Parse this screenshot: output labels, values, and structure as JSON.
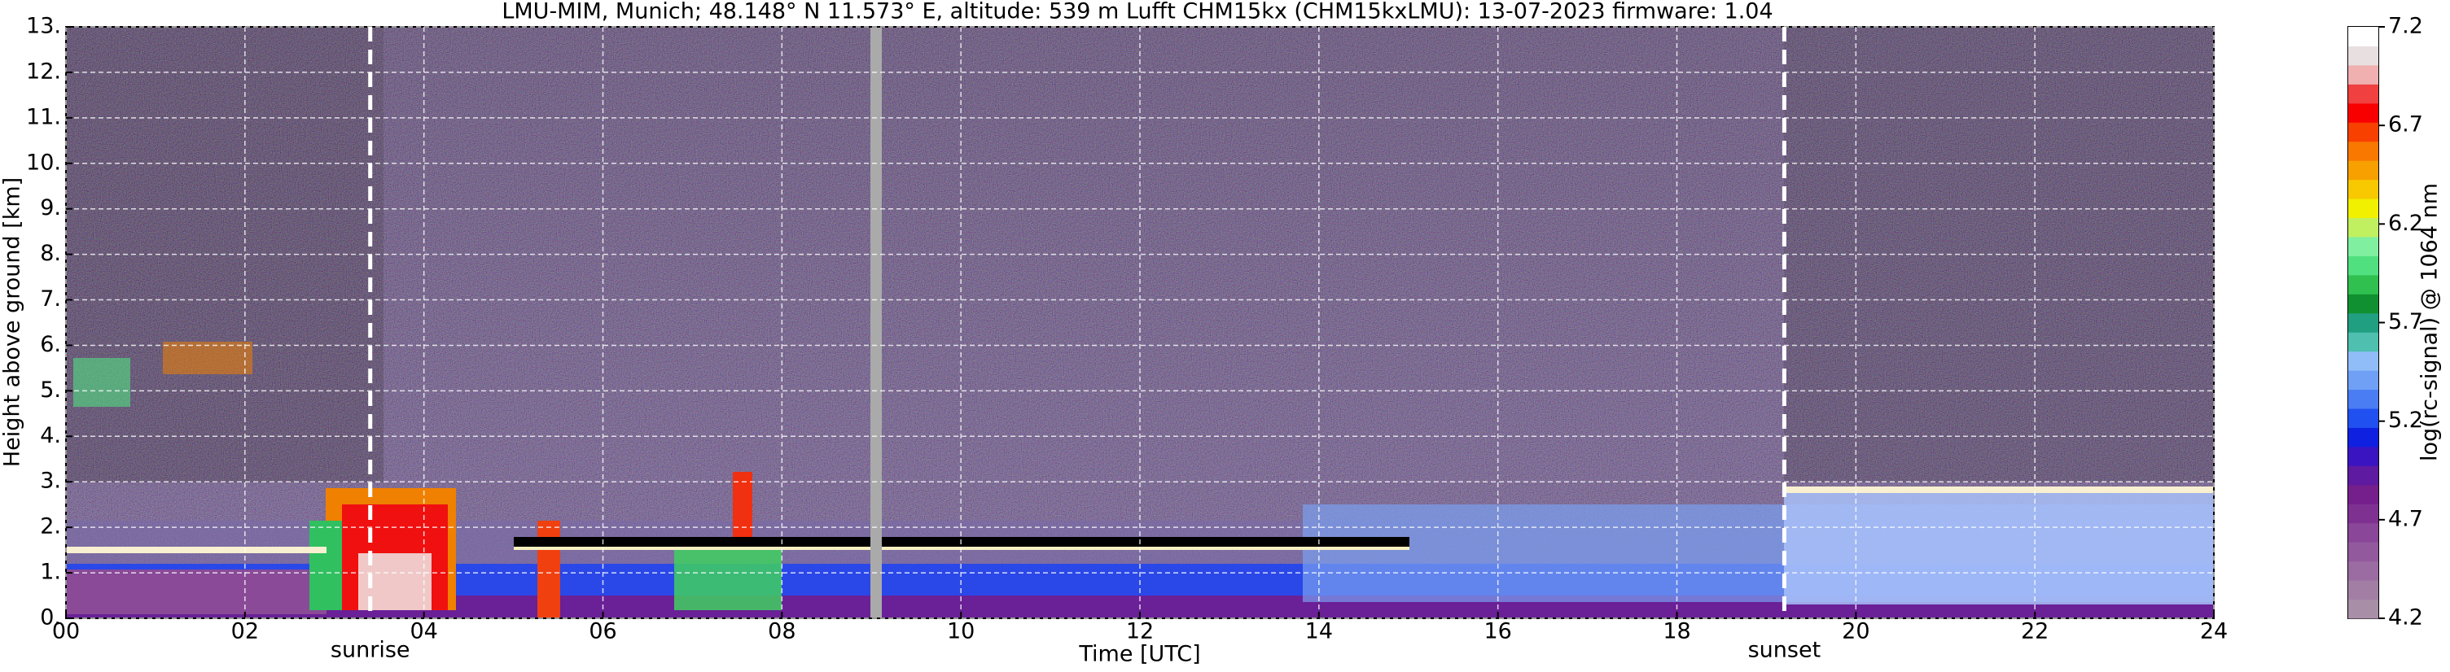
{
  "chart_data": {
    "type": "heatmap",
    "title": "LMU-MIM, Munich; 48.148° N 11.573° E, altitude: 539 m    Lufft CHM15kx (CHM15kxLMU): 13-07-2023    firmware: 1.04",
    "x_label": "Time [UTC]",
    "y_label": "Height above ground [km]",
    "xlim": [
      0,
      24
    ],
    "xticks": [
      {
        "value": 0,
        "label": "00"
      },
      {
        "value": 2,
        "label": "02"
      },
      {
        "value": 4,
        "label": "04"
      },
      {
        "value": 6,
        "label": "06"
      },
      {
        "value": 8,
        "label": "08"
      },
      {
        "value": 10,
        "label": "10"
      },
      {
        "value": 12,
        "label": "12"
      },
      {
        "value": 14,
        "label": "14"
      },
      {
        "value": 16,
        "label": "16"
      },
      {
        "value": 18,
        "label": "18"
      },
      {
        "value": 20,
        "label": "20"
      },
      {
        "value": 22,
        "label": "22"
      },
      {
        "value": 24,
        "label": "24"
      }
    ],
    "ylim": [
      0,
      13
    ],
    "yticks": [
      {
        "value": 0,
        "label": "0."
      },
      {
        "value": 1,
        "label": "1."
      },
      {
        "value": 2,
        "label": "2."
      },
      {
        "value": 3,
        "label": "3."
      },
      {
        "value": 4,
        "label": "4."
      },
      {
        "value": 5,
        "label": "5."
      },
      {
        "value": 6,
        "label": "6."
      },
      {
        "value": 7,
        "label": "7."
      },
      {
        "value": 8,
        "label": "8."
      },
      {
        "value": 9,
        "label": "9."
      },
      {
        "value": 10,
        "label": "10."
      },
      {
        "value": 11,
        "label": "11."
      },
      {
        "value": 12,
        "label": "12."
      },
      {
        "value": 13,
        "label": "13."
      }
    ],
    "grid": true,
    "annotations": [
      {
        "x": 3.4,
        "label": "sunrise"
      },
      {
        "x": 19.2,
        "label": "sunset"
      }
    ],
    "colorbar": {
      "label": "log(rc-signal) @ 1064 nm",
      "lim": [
        4.2,
        7.2
      ],
      "ticks": [
        4.2,
        4.7,
        5.2,
        5.7,
        6.2,
        6.7,
        7.2
      ],
      "colors": [
        "#a98ea8",
        "#a27ea5",
        "#9a6ca1",
        "#93599d",
        "#8a4698",
        "#7f3192",
        "#741f8c",
        "#5e1aa0",
        "#3a14c0",
        "#1020e0",
        "#2050f0",
        "#4a7cf4",
        "#6fa0f6",
        "#90bdf8",
        "#4fbfb0",
        "#20a080",
        "#109030",
        "#30c050",
        "#50e080",
        "#80f0a0",
        "#c0f060",
        "#f0f000",
        "#f8c800",
        "#f8a000",
        "#f87800",
        "#f84000",
        "#f80000",
        "#f04040",
        "#f0b0b0",
        "#e8e0e0",
        "#ffffff"
      ]
    }
  }
}
